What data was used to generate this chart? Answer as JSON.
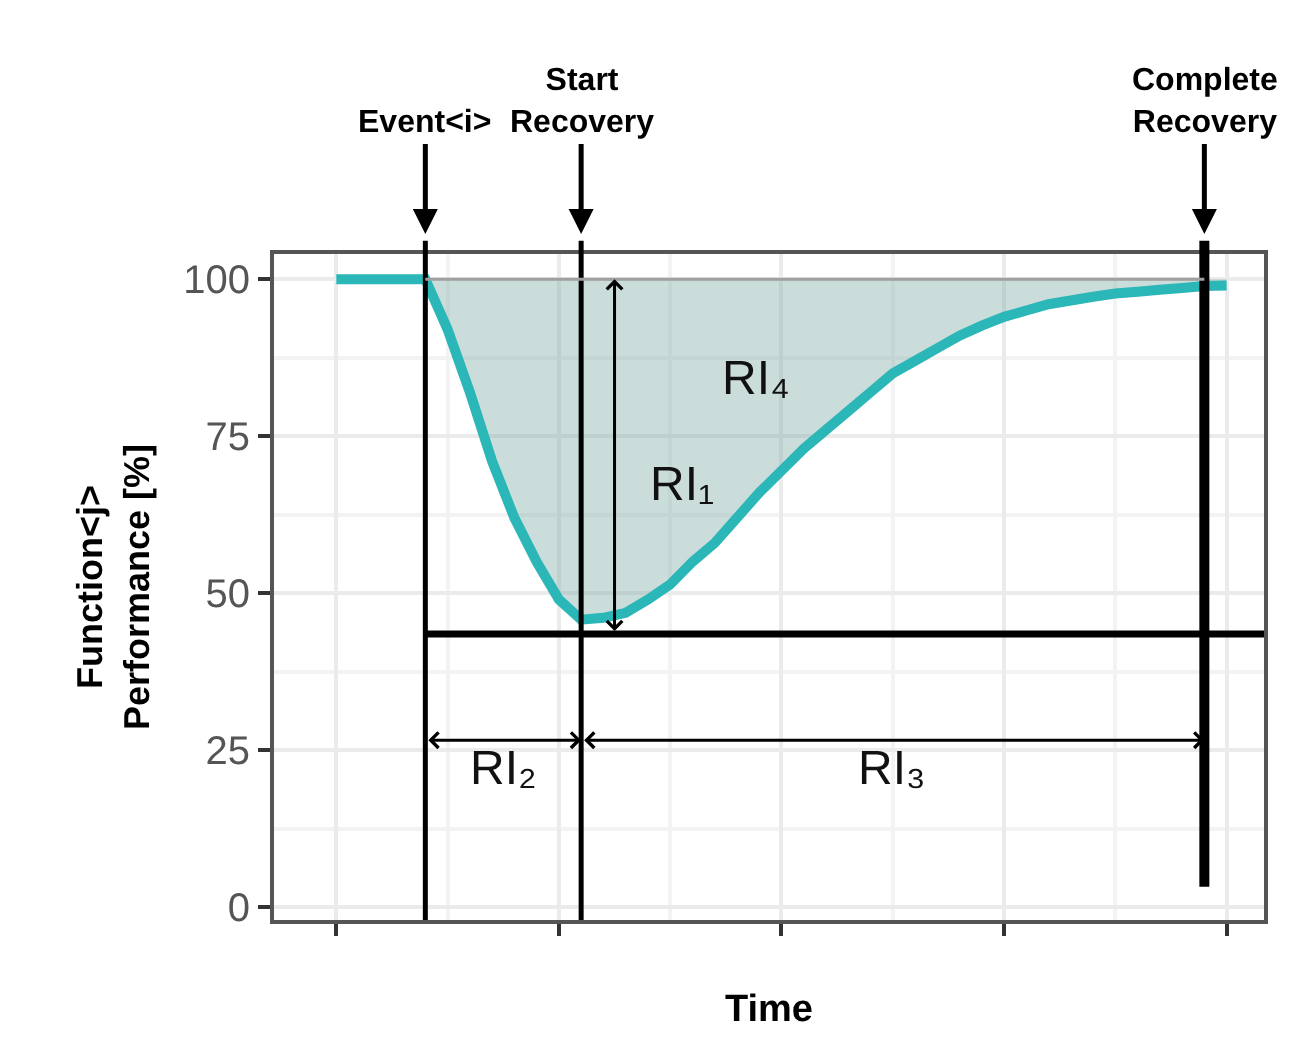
{
  "chart_data": {
    "type": "line",
    "xlabel": "Time",
    "ylabel": "Function<j>\nPerformance [%]",
    "categories": [
      null,
      null,
      null,
      null,
      null,
      null,
      null,
      null,
      null,
      null,
      null,
      null,
      null,
      null,
      null,
      null,
      null,
      null,
      null,
      null,
      null,
      null,
      null,
      null,
      null,
      null,
      null,
      null,
      null,
      null,
      null,
      null,
      null,
      null,
      null,
      null,
      null,
      null,
      null,
      null,
      null
    ],
    "series": [
      {
        "color": "#2bb6b8",
        "values": [
          100,
          100,
          100,
          100,
          100,
          92,
          82,
          71,
          62,
          55,
          49,
          45.8,
          46.1,
          46.9,
          49,
          51.4,
          55,
          58,
          62,
          66,
          69.5,
          73,
          76,
          79,
          82,
          85,
          87,
          89,
          91,
          92.6,
          94,
          95,
          96,
          96.6,
          97.2,
          97.7,
          98,
          98.3,
          98.6,
          98.9,
          99
        ],
        "lower": [
          null,
          null,
          null,
          null,
          100,
          92,
          82,
          71,
          62,
          55,
          49,
          45.8,
          46.1,
          46.9,
          49,
          51.4,
          55,
          58,
          62,
          66,
          69.5,
          73,
          76,
          79,
          82,
          85,
          87,
          89,
          91,
          92.6,
          94,
          95,
          96,
          96.6,
          97.2,
          97.7,
          98,
          98.3,
          98.6,
          98.9,
          99
        ],
        "upper": [
          null,
          null,
          null,
          null,
          100,
          100,
          100,
          100,
          100,
          100,
          100,
          100,
          100,
          100,
          100,
          100,
          100,
          100,
          100,
          100,
          100,
          100,
          100,
          100,
          100,
          100,
          100,
          100,
          100,
          100,
          100,
          100,
          100,
          100,
          100,
          100,
          100,
          100,
          100,
          100,
          100
        ]
      }
    ],
    "ylim": [
      -2,
      104
    ],
    "yticks": [
      0,
      25,
      50,
      75,
      100
    ],
    "tick_labels": "y",
    "grid": true,
    "marker": "none",
    "line_style": "solid",
    "ref_lines": [
      {
        "axis": "y",
        "value": 43.5,
        "color": "#000000"
      },
      {
        "axis": "y",
        "value": 100,
        "color": "#a0a0a0"
      }
    ],
    "annotations": [
      "Event<i>",
      "Start\nRecovery",
      "Complete\nRecovery",
      "RI₁",
      "RI₂",
      "RI₃",
      "RI₄"
    ]
  }
}
